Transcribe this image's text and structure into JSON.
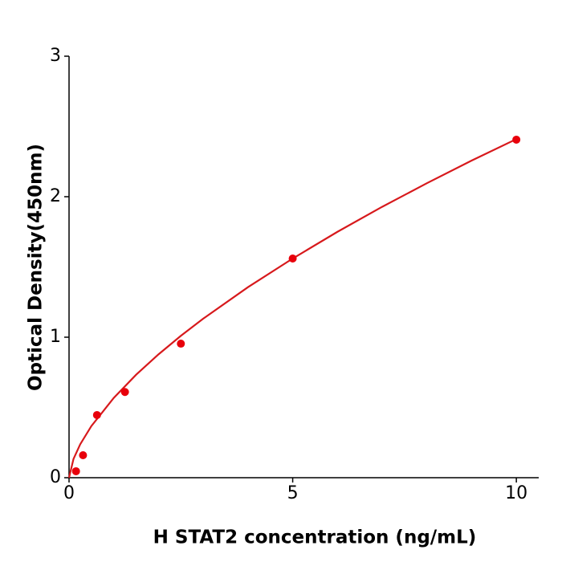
{
  "chart_data": {
    "type": "scatter",
    "x_label": "H  STAT2 concentration (ng/mL)",
    "y_label": "Optical Density(450nm)",
    "series": [
      {
        "x": [
          0.156,
          0.3125,
          0.625,
          1.25,
          2.5,
          5,
          10
        ],
        "values": [
          0.046,
          0.16,
          0.446,
          0.61,
          0.954,
          1.56,
          2.406
        ],
        "color": "#e8000b"
      }
    ],
    "fit": {
      "x": [
        0,
        0.1,
        0.25,
        0.5,
        1,
        1.5,
        2,
        2.5,
        3,
        4,
        5,
        6,
        7,
        8,
        9,
        10
      ],
      "values": [
        0,
        0.134,
        0.238,
        0.368,
        0.568,
        0.733,
        0.878,
        1.01,
        1.132,
        1.356,
        1.56,
        1.75,
        1.928,
        2.096,
        2.257,
        2.41
      ],
      "color": "#d7191c"
    },
    "xlim": [
      0,
      10.5
    ],
    "ylim": [
      0,
      3
    ],
    "xticks": [
      0,
      5,
      10
    ],
    "yticks": [
      0,
      1,
      2,
      3
    ]
  }
}
